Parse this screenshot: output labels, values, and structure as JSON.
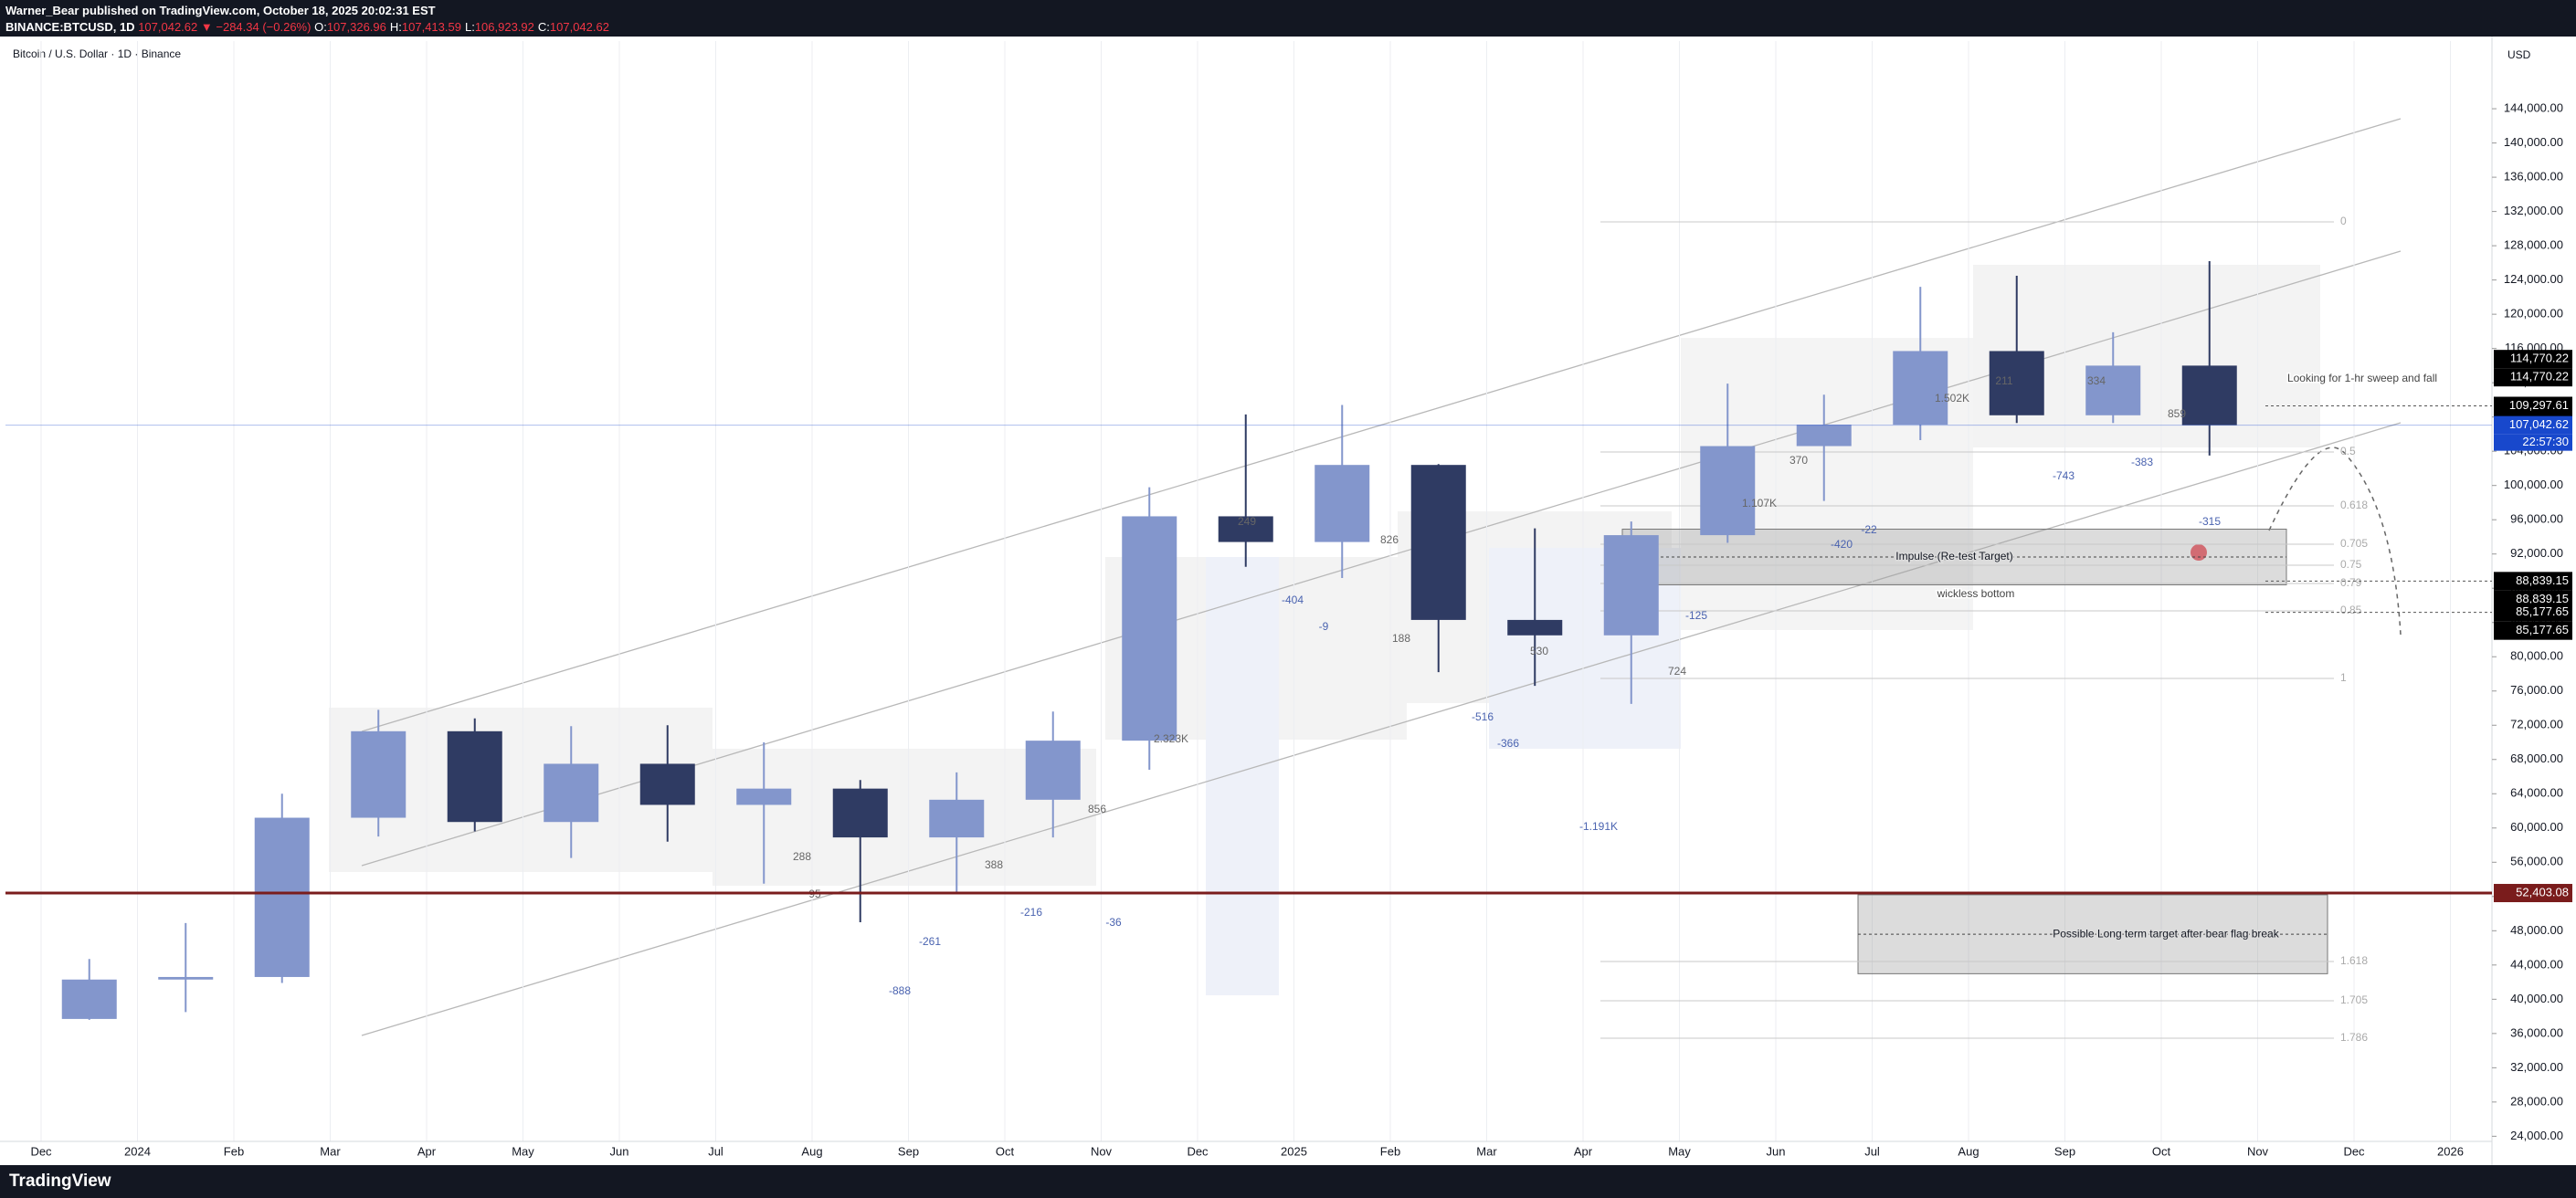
{
  "header": {
    "publisher": "Warner_Bear published on TradingView.com, October 18, 2025 20:02:31 EST",
    "symbol": "BINANCE:BTCUSD, 1D",
    "price": "107,042.62",
    "change": "▼ −284.34 (−0.26%)",
    "ohlc": [
      {
        "key": "O:",
        "value": "107,326.96"
      },
      {
        "key": "H:",
        "value": "107,413.59"
      },
      {
        "key": "L:",
        "value": "106,923.92"
      },
      {
        "key": "C:",
        "value": "107,042.62"
      }
    ]
  },
  "chart_data": {
    "type": "candlestick",
    "title": "Bitcoin / U.S. Dollar · 1D · Binance",
    "categories": [
      "Dec",
      "2024",
      "Feb",
      "Mar",
      "Apr",
      "May",
      "Jun",
      "Jul",
      "Aug",
      "Sep",
      "Oct",
      "Nov",
      "Dec",
      "2025",
      "Feb",
      "Mar",
      "Apr",
      "May",
      "Jun",
      "Jul",
      "Aug",
      "Sep",
      "Oct",
      "Nov",
      "Dec",
      "2026"
    ],
    "open": [
      37700,
      42300,
      42600,
      61200,
      71300,
      60700,
      67500,
      62700,
      64600,
      58900,
      63300,
      70200,
      96400,
      93400,
      102400,
      84300,
      82500,
      94200,
      104600,
      107100,
      115700,
      108200,
      114000,
      null,
      null,
      null
    ],
    "high": [
      44700,
      48900,
      64000,
      73800,
      72800,
      71900,
      72000,
      70000,
      65600,
      66500,
      73600,
      99800,
      108300,
      109400,
      102500,
      95000,
      95800,
      111900,
      110600,
      123200,
      124500,
      117900,
      126200,
      null,
      null,
      null
    ],
    "low": [
      37600,
      38500,
      41900,
      59000,
      59600,
      56500,
      58400,
      53500,
      49000,
      52500,
      58900,
      66800,
      90500,
      89200,
      78200,
      76600,
      74500,
      93300,
      98200,
      105300,
      107300,
      107300,
      103500,
      null,
      null,
      null
    ],
    "close": [
      42300,
      42600,
      61200,
      71300,
      60700,
      67500,
      62700,
      64600,
      58900,
      63300,
      70200,
      96400,
      93400,
      102400,
      84300,
      82500,
      94200,
      104600,
      107100,
      115700,
      108200,
      114000,
      107042.62,
      null,
      null,
      null
    ],
    "up_color": "#8396cc",
    "down_color": "#2f3b63",
    "grid": true,
    "ylim": [
      23400,
      151900
    ],
    "yticks": [
      {
        "value": 24000,
        "label": "24,000.00"
      },
      {
        "value": 28000,
        "label": "28,000.00"
      },
      {
        "value": 32000,
        "label": "32,000.00"
      },
      {
        "value": 36000,
        "label": "36,000.00"
      },
      {
        "value": 40000,
        "label": "40,000.00"
      },
      {
        "value": 44000,
        "label": "44,000.00"
      },
      {
        "value": 48000,
        "label": "48,000.00"
      },
      {
        "value": 52000,
        "label": "52,000.00"
      },
      {
        "value": 56000,
        "label": "56,000.00"
      },
      {
        "value": 60000,
        "label": "60,000.00"
      },
      {
        "value": 64000,
        "label": "64,000.00"
      },
      {
        "value": 68000,
        "label": "68,000.00"
      },
      {
        "value": 72000,
        "label": "72,000.00"
      },
      {
        "value": 76000,
        "label": "76,000.00"
      },
      {
        "value": 80000,
        "label": "80,000.00"
      },
      {
        "value": 84000,
        "label": "84,000.00"
      },
      {
        "value": 88000,
        "label": "88,000.00"
      },
      {
        "value": 92000,
        "label": "92,000.00"
      },
      {
        "value": 96000,
        "label": "96,000.00"
      },
      {
        "value": 100000,
        "label": "100,000.00"
      },
      {
        "value": 104000,
        "label": "104,000.00"
      },
      {
        "value": 108000,
        "label": "108,000.00"
      },
      {
        "value": 112000,
        "label": "112,000.00"
      },
      {
        "value": 116000,
        "label": "116,000.00"
      },
      {
        "value": 120000,
        "label": "120,000.00"
      },
      {
        "value": 124000,
        "label": "124,000.00"
      },
      {
        "value": 128000,
        "label": "128,000.00"
      },
      {
        "value": 132000,
        "label": "132,000.00"
      },
      {
        "value": 136000,
        "label": "136,000.00"
      },
      {
        "value": 140000,
        "label": "140,000.00"
      },
      {
        "value": 144000,
        "label": "144,000.00"
      }
    ],
    "y_axis_label": "USD",
    "price_levels": [
      {
        "value": 114770.22,
        "label": "114,770.22",
        "color": "#000000",
        "style": "none"
      },
      {
        "value": 114770.22,
        "label": "114,770.22",
        "color": "#000000",
        "style": "none"
      },
      {
        "value": 109297.61,
        "label": "109,297.61",
        "color": "#000000",
        "style": "short"
      },
      {
        "value": 109297.61,
        "label": "109,297.61",
        "color": "#000000",
        "style": "none"
      },
      {
        "value": 107042.62,
        "label": "107,042.62",
        "color": "#1848cc",
        "style": "full"
      },
      {
        "value": 88839.15,
        "label": "88,839.15",
        "color": "#000000",
        "style": "short"
      },
      {
        "value": 88839.15,
        "label": "88,839.15",
        "color": "#000000",
        "style": "none"
      },
      {
        "value": 85177.65,
        "label": "85,177.65",
        "color": "#000000",
        "style": "short"
      },
      {
        "value": 85177.65,
        "label": "85,177.65",
        "color": "#000000",
        "style": "none"
      },
      {
        "value": 52403.08,
        "label": "52,403.08",
        "color": "#7a1c1c",
        "style": "full"
      }
    ],
    "countdown": "22:57:30",
    "zones": [
      {
        "label": "Impulse (Re-test Target)",
        "ylim": [
          88400,
          94900
        ]
      },
      {
        "label": "Possible Long term target after bear flag break",
        "ylim": [
          42980,
          52200
        ]
      }
    ],
    "annotations": [
      "wickless bottom",
      "Looking for 1-hr sweep and fall"
    ],
    "fib_levels": [
      0,
      0.5,
      0.618,
      0.705,
      0.75,
      0.79,
      0.85,
      1,
      1.618,
      1.705,
      1.786
    ],
    "profile_labels": [
      "249",
      "-404",
      "-9",
      "826",
      "188",
      "530",
      "-516",
      "-366",
      "-1.191K",
      "724",
      "-125",
      "1.107K",
      "370",
      "-420",
      "-22",
      "1.502K",
      "211",
      "334",
      "-743",
      "-383",
      "859",
      "-315",
      "2.323K",
      "856",
      "-36",
      "288",
      "95",
      "-261",
      "-888",
      "388",
      "-216"
    ]
  },
  "footer": {
    "brand": "TradingView"
  }
}
